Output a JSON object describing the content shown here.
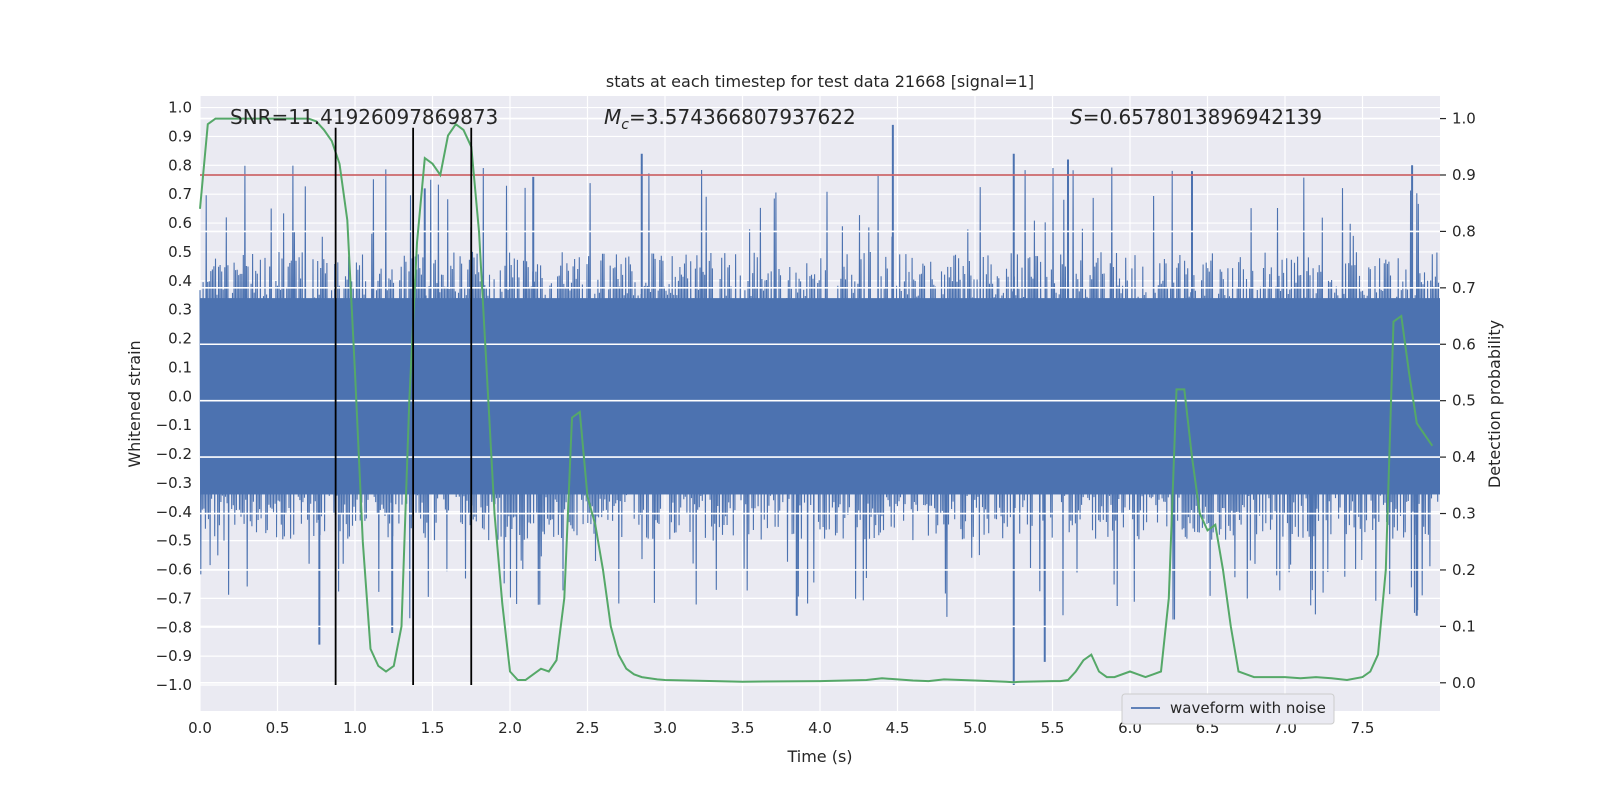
{
  "chart_data": {
    "type": "line",
    "title": "stats at each timestep for test data 21668 [signal=1]",
    "xlabel": "Time (s)",
    "ylabel_left": "Whitened strain",
    "ylabel_right": "Detection probability",
    "xlim": [
      0.0,
      8.0
    ],
    "ylim_left": [
      -1.09,
      1.04
    ],
    "ylim_right": [
      -0.05,
      1.04
    ],
    "x_ticks": [
      "0.0",
      "0.5",
      "1.0",
      "1.5",
      "2.0",
      "2.5",
      "3.0",
      "3.5",
      "4.0",
      "4.5",
      "5.0",
      "5.5",
      "6.0",
      "6.5",
      "7.0",
      "7.5"
    ],
    "y_ticks_left": [
      "1.0",
      "0.9",
      "0.8",
      "0.7",
      "0.6",
      "0.5",
      "0.4",
      "0.3",
      "0.2",
      "0.1",
      "0.0",
      "-0.1",
      "-0.2",
      "-0.3",
      "-0.4",
      "-0.5",
      "-0.6",
      "-0.7",
      "-0.8",
      "-0.9",
      "-1.0"
    ],
    "y_ticks_right": [
      "1.0",
      "0.9",
      "0.8",
      "0.7",
      "0.6",
      "0.5",
      "0.4",
      "0.3",
      "0.2",
      "0.1",
      "0.0"
    ],
    "annotations": {
      "snr": "SNR=11.41926097869873",
      "mc_symbol": "M",
      "mc_sub": "c",
      "mc_value": "=3.574366807937622",
      "s_symbol": "S",
      "s_value": "=0.6578013896942139"
    },
    "legend": {
      "label": "waveform with noise",
      "position": "bottom-right"
    },
    "threshold": {
      "value": 0.9,
      "axis": "right",
      "color": "#c44e52"
    },
    "vertical_markers": [
      0.875,
      1.375,
      1.75
    ],
    "vertical_marker_range": [
      -1.0,
      0.93
    ],
    "waveform": {
      "name": "waveform with noise",
      "color": "#4c72b0",
      "approx_envelope": [
        -0.5,
        0.5
      ],
      "notable_peaks": [
        {
          "x": 0.77,
          "y": -0.86
        },
        {
          "x": 1.24,
          "y": -0.82
        },
        {
          "x": 1.45,
          "y": 0.72
        },
        {
          "x": 2.15,
          "y": 0.76
        },
        {
          "x": 2.85,
          "y": 0.84
        },
        {
          "x": 4.47,
          "y": 0.94
        },
        {
          "x": 3.85,
          "y": -0.76
        },
        {
          "x": 5.25,
          "y": -1.0
        },
        {
          "x": 5.25,
          "y": 0.84
        },
        {
          "x": 5.45,
          "y": -0.92
        },
        {
          "x": 5.6,
          "y": 0.82
        },
        {
          "x": 6.4,
          "y": 0.78
        },
        {
          "x": 7.82,
          "y": 0.8
        },
        {
          "x": 7.85,
          "y": -0.76
        }
      ]
    },
    "series": [
      {
        "name": "detection probability",
        "axis": "right",
        "color": "#55a868",
        "x": [
          0.0,
          0.05,
          0.1,
          0.2,
          0.3,
          0.4,
          0.5,
          0.6,
          0.7,
          0.75,
          0.8,
          0.85,
          0.9,
          0.95,
          1.0,
          1.05,
          1.1,
          1.15,
          1.2,
          1.25,
          1.3,
          1.35,
          1.4,
          1.45,
          1.5,
          1.55,
          1.6,
          1.65,
          1.7,
          1.75,
          1.8,
          1.85,
          1.9,
          1.95,
          2.0,
          2.05,
          2.1,
          2.15,
          2.2,
          2.25,
          2.3,
          2.35,
          2.4,
          2.45,
          2.5,
          2.55,
          2.6,
          2.65,
          2.7,
          2.75,
          2.8,
          2.85,
          2.9,
          2.95,
          3.0,
          3.5,
          4.0,
          4.3,
          4.4,
          4.5,
          4.6,
          4.7,
          4.8,
          5.0,
          5.2,
          5.25,
          5.3,
          5.5,
          5.55,
          5.6,
          5.65,
          5.7,
          5.75,
          5.8,
          5.85,
          5.9,
          6.0,
          6.05,
          6.1,
          6.15,
          6.2,
          6.25,
          6.3,
          6.35,
          6.4,
          6.45,
          6.5,
          6.55,
          6.6,
          6.65,
          6.7,
          6.75,
          6.8,
          6.9,
          7.0,
          7.1,
          7.2,
          7.3,
          7.4,
          7.5,
          7.55,
          7.6,
          7.65,
          7.7,
          7.75,
          7.8,
          7.85,
          7.9,
          7.95
        ],
        "y": [
          0.84,
          0.99,
          1.0,
          1.0,
          1.0,
          1.0,
          1.0,
          1.0,
          1.0,
          0.995,
          0.98,
          0.96,
          0.92,
          0.82,
          0.55,
          0.25,
          0.06,
          0.03,
          0.02,
          0.03,
          0.1,
          0.5,
          0.78,
          0.93,
          0.92,
          0.9,
          0.97,
          0.99,
          0.98,
          0.95,
          0.8,
          0.55,
          0.3,
          0.14,
          0.02,
          0.005,
          0.005,
          0.015,
          0.025,
          0.02,
          0.04,
          0.15,
          0.47,
          0.48,
          0.33,
          0.28,
          0.2,
          0.1,
          0.05,
          0.025,
          0.015,
          0.01,
          0.008,
          0.006,
          0.005,
          0.002,
          0.003,
          0.005,
          0.008,
          0.006,
          0.004,
          0.003,
          0.006,
          0.004,
          0.002,
          0.001,
          0.002,
          0.003,
          0.003,
          0.005,
          0.02,
          0.04,
          0.05,
          0.02,
          0.01,
          0.01,
          0.02,
          0.015,
          0.01,
          0.015,
          0.02,
          0.15,
          0.52,
          0.52,
          0.4,
          0.3,
          0.27,
          0.28,
          0.2,
          0.1,
          0.02,
          0.015,
          0.01,
          0.01,
          0.01,
          0.008,
          0.01,
          0.008,
          0.005,
          0.01,
          0.02,
          0.05,
          0.2,
          0.64,
          0.65,
          0.55,
          0.46,
          0.44,
          0.42
        ]
      }
    ]
  }
}
